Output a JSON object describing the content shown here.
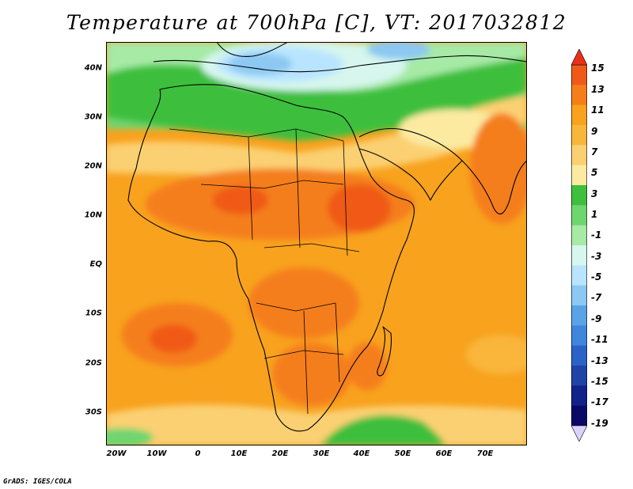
{
  "title": "Temperature at 700hPa [C], VT: 2017032812",
  "footer": "GrADS: IGES/COLA",
  "latitude_ticks": [
    "40N",
    "30N",
    "20N",
    "10N",
    "EQ",
    "10S",
    "20S",
    "30S"
  ],
  "longitude_ticks": [
    "20W",
    "10W",
    "0",
    "10E",
    "20E",
    "30E",
    "40E",
    "50E",
    "60E",
    "70E"
  ],
  "colorbar": {
    "labels": [
      "15",
      "13",
      "11",
      "9",
      "7",
      "5",
      "3",
      "1",
      "-1",
      "-3",
      "-5",
      "-7",
      "-9",
      "-11",
      "-13",
      "-15",
      "-17",
      "-19"
    ],
    "colors": {
      "max_arrow": "#e8311a",
      "min_arrow": "#dcd2ff",
      "bands_top_to_bottom": [
        "#f05a18",
        "#f57e1a",
        "#f8a21e",
        "#f9b63a",
        "#fbd072",
        "#fbeaa0",
        "#3ebf3e",
        "#6fd56f",
        "#a6eaa6",
        "#d6f6ee",
        "#b8e4ff",
        "#8cc8f2",
        "#5aa3e6",
        "#3f86dc",
        "#2a62c8",
        "#1f44a6",
        "#13218a",
        "#0a0a66"
      ]
    }
  }
}
